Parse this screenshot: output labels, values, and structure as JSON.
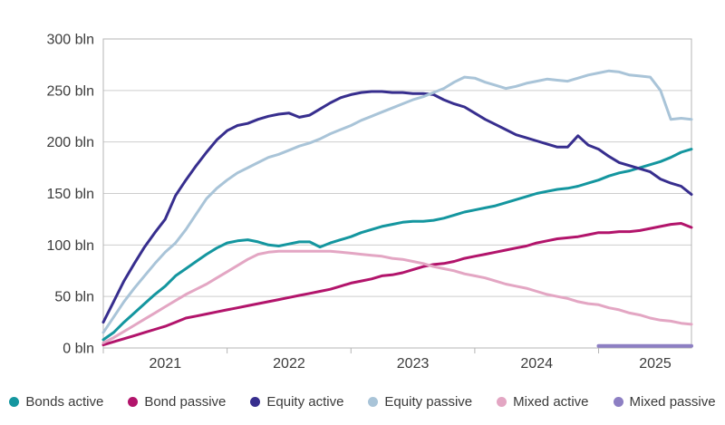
{
  "chart_data": {
    "type": "line",
    "title": "",
    "unit": "bln",
    "x_domain": "Jan 2021 - Oct 2025, monthly",
    "ylim": [
      0,
      300
    ],
    "grid": "horizontal",
    "legend_position": "bottom",
    "y_ticks": [
      {
        "v": 0,
        "label": "0 bln"
      },
      {
        "v": 50,
        "label": "50 bln"
      },
      {
        "v": 100,
        "label": "100 bln"
      },
      {
        "v": 150,
        "label": "150 bln"
      },
      {
        "v": 200,
        "label": "200 bln"
      },
      {
        "v": 250,
        "label": "250 bln"
      },
      {
        "v": 300,
        "label": "300 bln"
      }
    ],
    "x_ticks": [
      {
        "m": 0,
        "label": "2021"
      },
      {
        "m": 12,
        "label": "2022"
      },
      {
        "m": 24,
        "label": "2023"
      },
      {
        "m": 36,
        "label": "2024"
      },
      {
        "m": 48,
        "label": "2025"
      }
    ],
    "series": [
      {
        "name": "Bonds active",
        "color": "#14969f",
        "values": [
          8,
          15,
          25,
          34,
          43,
          52,
          60,
          70,
          77,
          84,
          91,
          97,
          102,
          104,
          105,
          103,
          100,
          99,
          101,
          103,
          103,
          98,
          102,
          105,
          108,
          112,
          115,
          118,
          120,
          122,
          123,
          123,
          124,
          126,
          129,
          132,
          134,
          136,
          138,
          141,
          144,
          147,
          150,
          152,
          154,
          155,
          157,
          160,
          163,
          167,
          170,
          172,
          175,
          178,
          181,
          185,
          190,
          193
        ]
      },
      {
        "name": "Bond passive",
        "color": "#b2146b",
        "values": [
          3,
          6,
          9,
          12,
          15,
          18,
          21,
          25,
          29,
          31,
          33,
          35,
          37,
          39,
          41,
          43,
          45,
          47,
          49,
          51,
          53,
          55,
          57,
          60,
          63,
          65,
          67,
          70,
          71,
          73,
          76,
          79,
          81,
          82,
          84,
          87,
          89,
          91,
          93,
          95,
          97,
          99,
          102,
          104,
          106,
          107,
          108,
          110,
          112,
          112,
          113,
          113,
          114,
          116,
          118,
          120,
          121,
          117
        ]
      },
      {
        "name": "Equity active",
        "color": "#372e8e",
        "values": [
          25,
          45,
          65,
          82,
          98,
          112,
          125,
          148,
          163,
          177,
          190,
          202,
          211,
          216,
          218,
          222,
          225,
          227,
          228,
          224,
          226,
          232,
          238,
          243,
          246,
          248,
          249,
          249,
          248,
          248,
          247,
          247,
          246,
          241,
          237,
          234,
          228,
          222,
          217,
          212,
          207,
          204,
          201,
          198,
          195,
          195,
          206,
          197,
          193,
          186,
          180,
          177,
          174,
          171,
          164,
          160,
          157,
          149
        ]
      },
      {
        "name": "Equity passive",
        "color": "#a9c4d8",
        "values": [
          15,
          30,
          45,
          58,
          70,
          82,
          93,
          102,
          115,
          130,
          145,
          155,
          163,
          170,
          175,
          180,
          185,
          188,
          192,
          196,
          199,
          203,
          208,
          212,
          216,
          221,
          225,
          229,
          233,
          237,
          241,
          244,
          248,
          252,
          258,
          263,
          262,
          258,
          255,
          252,
          254,
          257,
          259,
          261,
          260,
          259,
          262,
          265,
          267,
          269,
          268,
          265,
          264,
          263,
          250,
          222,
          223,
          222
        ]
      },
      {
        "name": "Mixed active",
        "color": "#e3a6c3",
        "values": [
          5,
          10,
          16,
          22,
          28,
          34,
          40,
          46,
          52,
          57,
          62,
          68,
          74,
          80,
          86,
          91,
          93,
          94,
          94,
          94,
          94,
          94,
          94,
          93,
          92,
          91,
          90,
          89,
          87,
          86,
          84,
          82,
          79,
          77,
          75,
          72,
          70,
          68,
          65,
          62,
          60,
          58,
          55,
          52,
          50,
          48,
          45,
          43,
          42,
          39,
          37,
          34,
          32,
          29,
          27,
          26,
          24,
          23
        ]
      },
      {
        "name": "Mixed passive",
        "color": "#8d7fc3",
        "values": [
          null,
          null,
          null,
          null,
          null,
          null,
          null,
          null,
          null,
          null,
          null,
          null,
          null,
          null,
          null,
          null,
          null,
          null,
          null,
          null,
          null,
          null,
          null,
          null,
          null,
          null,
          null,
          null,
          null,
          null,
          null,
          null,
          null,
          null,
          null,
          null,
          null,
          null,
          null,
          null,
          null,
          null,
          null,
          null,
          null,
          null,
          null,
          null,
          2,
          2,
          2,
          2,
          2,
          2,
          2,
          2,
          2,
          2
        ]
      }
    ]
  },
  "colors": {
    "gridline": "#cdcdcd",
    "plot_border": "#b5b5b5",
    "tick_text": "#3c3c3c",
    "legend_text": "#3a3a3a",
    "background": "#ffffff"
  }
}
